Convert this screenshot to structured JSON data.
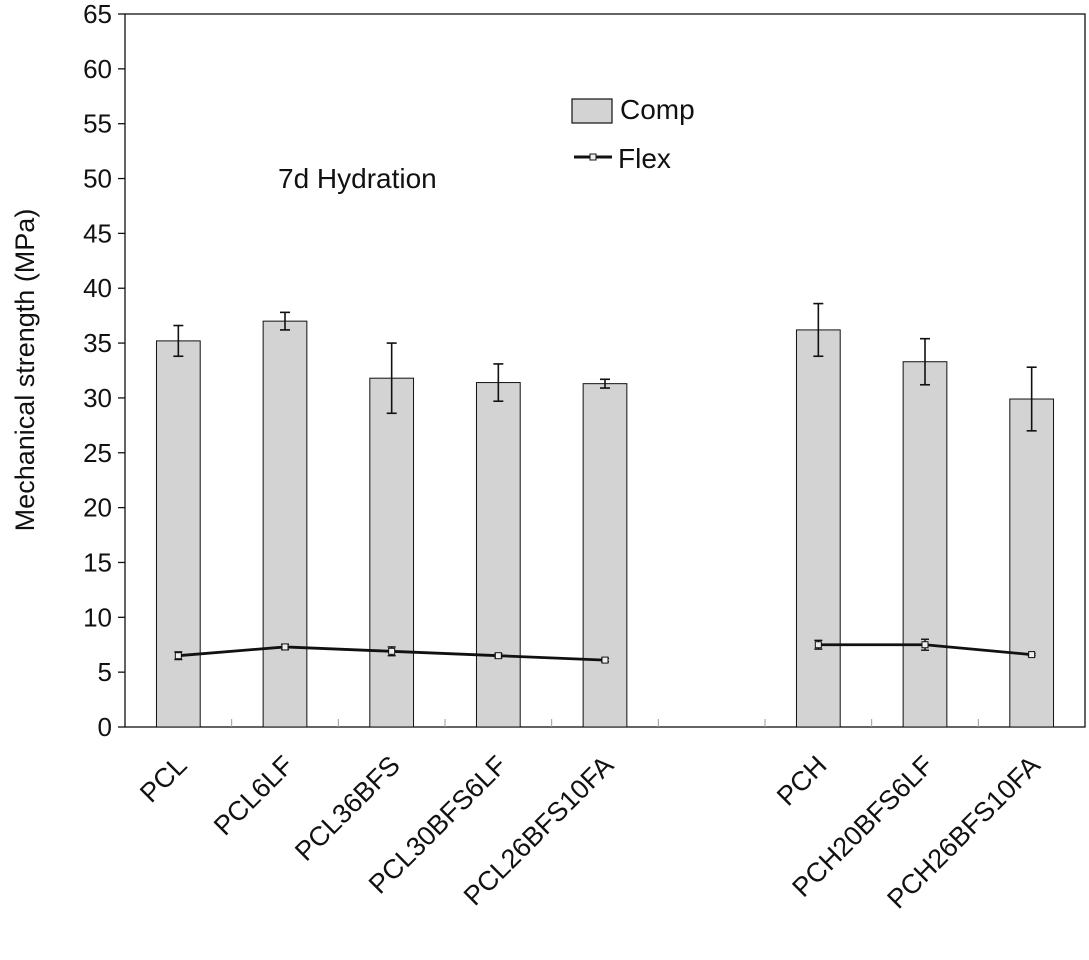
{
  "chart_data": {
    "type": "bar",
    "title": "",
    "annotation": "7d Hydration",
    "xlabel": "",
    "ylabel": "Mechanical strength (MPa)",
    "ylim": [
      0,
      65
    ],
    "yticks": [
      0,
      5,
      10,
      15,
      20,
      25,
      30,
      35,
      40,
      45,
      50,
      55,
      60,
      65
    ],
    "categories": [
      "PCL",
      "PCL6LF",
      "PCL36BFS",
      "PCL30BFS6LF",
      "PCL26BFS10FA",
      "",
      "PCH",
      "PCH20BFS6LF",
      "PCH26BFS10FA"
    ],
    "series": [
      {
        "name": "Comp",
        "kind": "bar",
        "color": "#d3d3d3",
        "values": [
          35.2,
          37.0,
          31.8,
          31.4,
          31.3,
          null,
          36.2,
          33.3,
          29.9
        ],
        "errors": [
          1.4,
          0.8,
          3.2,
          1.7,
          0.4,
          null,
          2.4,
          2.1,
          2.9
        ]
      },
      {
        "name": "Flex",
        "kind": "line",
        "color": "#111111",
        "values": [
          6.5,
          7.3,
          6.9,
          6.5,
          6.1,
          null,
          7.5,
          7.5,
          6.6
        ],
        "errors": [
          0.35,
          0.25,
          0.4,
          0.2,
          0.15,
          null,
          0.4,
          0.5,
          0.1
        ]
      }
    ],
    "legend_position": "top-center",
    "grid": false
  }
}
